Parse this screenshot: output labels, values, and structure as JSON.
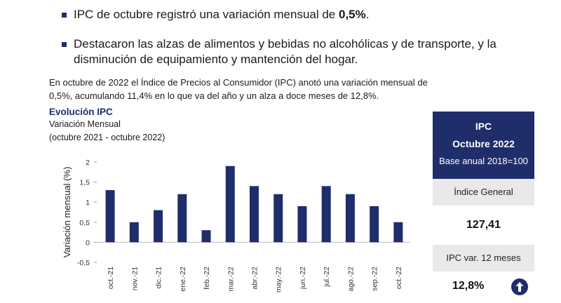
{
  "bullets": {
    "b1_text": "IPC de octubre registró una variación mensual de ",
    "b1_bold": "0,5%",
    "b1_end": ".",
    "b2_text": "Destacaron las alzas de alimentos y bebidas no alcohólicas y de transporte, y la disminución de equipamiento y mantención del hogar."
  },
  "intro": "En octubre de 2022 el Índice de Precios al Consumidor (IPC) anotó una variación mensual de 0,5%, acumulando 11,4% en lo que va del año y un alza a doce meses de 12,8%.",
  "chart_header": {
    "title": "Evolución IPC",
    "subtitle": "Variación Mensual",
    "range": "(octubre 2021 - octubre 2022)"
  },
  "chart_data": {
    "type": "bar",
    "title": "Evolución IPC",
    "ylabel": "Variación mensual (%)",
    "xlabel": "",
    "categories": [
      "oct.-21",
      "nov.-21",
      "dic.-21",
      "ene.-22",
      "feb.-22",
      "mar.-22",
      "abr.-22",
      "may.-22",
      "jun.-22",
      "jul.-22",
      "ago.-22",
      "sep.-22",
      "oct.-22"
    ],
    "values": [
      1.3,
      0.5,
      0.8,
      1.2,
      0.3,
      1.9,
      1.4,
      1.2,
      0.9,
      1.4,
      1.2,
      0.9,
      0.5
    ],
    "ylim": [
      -0.5,
      2
    ],
    "yticks": [
      -0.5,
      0,
      0.5,
      1,
      1.5,
      2
    ],
    "ytick_labels": [
      "-0,5",
      "0",
      "0,5",
      "1",
      "1,5",
      "2"
    ],
    "grid": false,
    "bar_color": "#1f2d6b"
  },
  "panel": {
    "line1": "IPC",
    "line2": "Octubre 2022",
    "line3": "Base anual 2018=100",
    "index_label": "Índice General",
    "index_value": "127,41",
    "var_label": "IPC var. 12 meses",
    "var_value": "12,8%",
    "trend_icon": "arrow-up-icon",
    "accent": "#1f2d6b"
  }
}
